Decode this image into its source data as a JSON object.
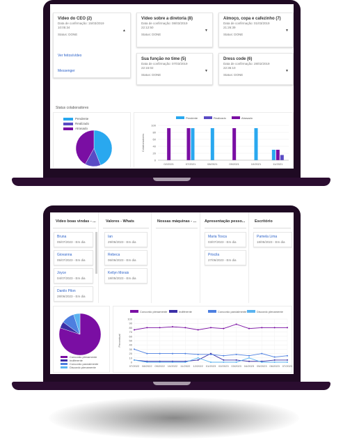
{
  "top": {
    "cards": [
      {
        "title": "Vídeo do CEO (2)",
        "date": "Data de confirmação: 15/03/2019",
        "time": "10:05:34",
        "status": "Status: DONE",
        "links": [
          "Ver feitos/vídeo",
          "Messenger"
        ]
      },
      {
        "title": "Vídeo sobre a diretoria (8)",
        "date": "Data de confirmação: 08/03/2019",
        "time": "22:12:50",
        "status": "Status: DONE"
      },
      {
        "title": "Almoço, copa e cafezinho (7)",
        "date": "Data de confirmação: 01/03/2019",
        "time": "21:26:39",
        "status": "Status: DONE"
      },
      {
        "title": "Sua função no time (5)",
        "date": "Data de confirmação: 07/03/2019",
        "time": "22:15:02",
        "status": "Status: DONE"
      },
      {
        "title": "Dress code (6)",
        "date": "Data de confirmação: 28/02/2019",
        "time": "22:36:10",
        "status": "Status: DONE"
      }
    ],
    "section_title": "Status colaboradores",
    "pie_legend": [
      "Pendente",
      "Realizado",
      "Atrasado"
    ],
    "bar_legend": [
      "Pendente",
      "Realizado",
      "Atrasado"
    ],
    "bar_ylabel": "Colaboradores"
  },
  "top_pie": {
    "type": "pie",
    "slices": [
      {
        "name": "Pendente",
        "value": 44,
        "color": "#29a8ef"
      },
      {
        "name": "Realizado",
        "value": 14,
        "color": "#5a4bc4"
      },
      {
        "name": "Atrasado",
        "value": 42,
        "color": "#7a0ea3"
      }
    ]
  },
  "top_bar": {
    "type": "bar",
    "categories": [
      "02/2021",
      "07/2021",
      "08/2021",
      "09/2021",
      "10/2021",
      "11/2021"
    ],
    "yticks": [
      "100",
      "80",
      "60",
      "40",
      "20",
      "0"
    ],
    "ylim": [
      0,
      100
    ],
    "groups": [
      {
        "bars": [
          {
            "series": "Atrasado",
            "value": 92
          }
        ]
      },
      {
        "bars": [
          {
            "series": "Atrasado",
            "value": 92
          },
          {
            "series": "Pendente",
            "value": 92
          }
        ]
      },
      {
        "bars": [
          {
            "series": "Pendente",
            "value": 92
          }
        ]
      },
      {
        "bars": [
          {
            "series": "Atrasado",
            "value": 92
          }
        ]
      },
      {
        "bars": [
          {
            "series": "Pendente",
            "value": 92
          }
        ]
      },
      {
        "bars": [
          {
            "series": "Pendente",
            "value": 30
          },
          {
            "series": "Atrasado",
            "value": 30
          },
          {
            "series": "Realizado",
            "value": 15
          }
        ]
      }
    ],
    "colors": {
      "Pendente": "#29a8ef",
      "Realizado": "#5a4bc4",
      "Atrasado": "#7a0ea3"
    }
  },
  "bottom": {
    "columns": [
      {
        "title": "Vídeo boas vindas - ...",
        "items": [
          {
            "name": "Bruna",
            "sub": "05/07/2023 - Em dia"
          },
          {
            "name": "Giovanna",
            "sub": "05/07/2023 - Em dia"
          },
          {
            "name": "Joyce",
            "sub": "04/07/2023 - Em dia"
          },
          {
            "name": "Danilo Pilon",
            "sub": "28/06/2023 - Em dia"
          }
        ]
      },
      {
        "title": "Valores - Whats",
        "items": [
          {
            "name": "Ian",
            "sub": "29/06/2023 - Em dia"
          },
          {
            "name": "Rebeca",
            "sub": "06/06/2023 - Em dia"
          },
          {
            "name": "Ketlyn Morais",
            "sub": "18/05/2023 - Em dia"
          }
        ]
      },
      {
        "title": "Nossas máquinas - ...",
        "items": []
      },
      {
        "title": "Apresentação pesso...",
        "items": [
          {
            "name": "Maria Tosca",
            "sub": "03/07/2023 - Em dia"
          },
          {
            "name": "Priscila",
            "sub": "27/06/2023 - Em dia"
          }
        ]
      },
      {
        "title": "Escritório",
        "items": [
          {
            "name": "Pamela Lima",
            "sub": "18/05/2023 - Em dia"
          }
        ]
      }
    ],
    "pie_legend": [
      "Concordo plenamente",
      "Indiferente",
      "Concordo parcialmente",
      "Discordo plenamente"
    ],
    "line_legend": [
      "Concordo plenamente",
      "Indiferente",
      "Concordo parcialmente",
      "Discordo plenamente"
    ],
    "line_ylabel": "Percentual"
  },
  "bottom_pie": {
    "type": "pie",
    "slices": [
      {
        "name": "Concordo plenamente",
        "value": 80,
        "color": "#7a0ea3"
      },
      {
        "name": "Indiferente",
        "value": 5,
        "color": "#3b2fa6"
      },
      {
        "name": "Concordo parcialmente",
        "value": 10,
        "color": "#4d7fe0"
      },
      {
        "name": "Discordo plenamente",
        "value": 5,
        "color": "#5ab3f0"
      }
    ]
  },
  "bottom_line": {
    "type": "line",
    "x": [
      "07/2022",
      "08/2022",
      "09/2022",
      "10/2022",
      "11/2022",
      "12/2022",
      "01/2023",
      "02/2023",
      "03/2023",
      "04/2023",
      "05/2023",
      "06/2023",
      "07/2023"
    ],
    "yticks": [
      "100",
      "90",
      "80",
      "70",
      "60",
      "50",
      "40",
      "30",
      "20",
      "10",
      "0"
    ],
    "ylim": [
      0,
      100
    ],
    "series": [
      {
        "name": "Concordo plenamente",
        "color": "#7a0ea3",
        "values": [
          75,
          80,
          80,
          82,
          80,
          75,
          80,
          78,
          88,
          78,
          80,
          80,
          80
        ]
      },
      {
        "name": "Indiferente",
        "color": "#3b2fa6",
        "values": [
          5,
          2,
          2,
          2,
          2,
          5,
          20,
          5,
          5,
          2,
          2,
          5,
          5
        ]
      },
      {
        "name": "Concordo parcialmente",
        "color": "#4d7fe0",
        "values": [
          30,
          20,
          20,
          20,
          20,
          18,
          18,
          15,
          18,
          15,
          20,
          12,
          15
        ]
      },
      {
        "name": "Discordo plenamente",
        "color": "#5ab3f0",
        "values": [
          5,
          0,
          0,
          0,
          0,
          10,
          0,
          0,
          0,
          10,
          0,
          0,
          0
        ]
      }
    ]
  }
}
